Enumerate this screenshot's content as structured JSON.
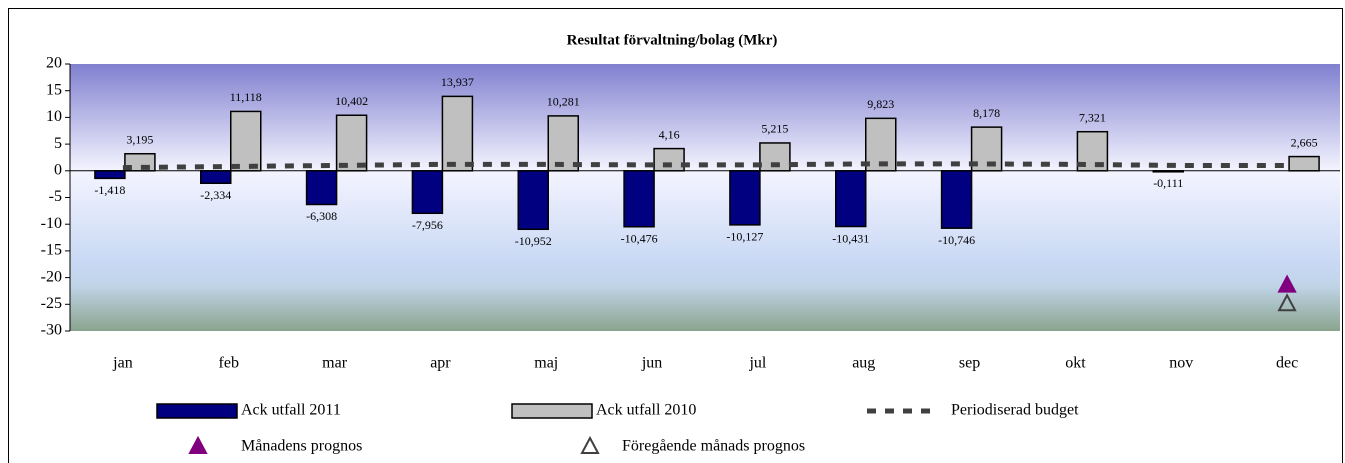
{
  "chart_data": {
    "type": "bar",
    "title": "Resultat förvaltning/bolag (Mkr)",
    "categories": [
      "jan",
      "feb",
      "mar",
      "apr",
      "maj",
      "jun",
      "jul",
      "aug",
      "sep",
      "okt",
      "nov",
      "dec"
    ],
    "series": [
      {
        "name": "Ack utfall 2011",
        "color": "#000080",
        "style": "bar",
        "values": [
          -1.418,
          -2.334,
          -6.308,
          -7.956,
          -10.952,
          -10.476,
          -10.127,
          -10.431,
          -10.746,
          null,
          -0.111,
          null
        ],
        "value_labels": [
          "-1,418",
          "-2,334",
          "-6,308",
          "-7,956",
          "-10,952",
          "-10,476",
          "-10,127",
          "-10,431",
          "-10,746",
          null,
          "-0,111",
          null
        ]
      },
      {
        "name": "Ack utfall 2010",
        "color": "#c0c0c0",
        "style": "bar",
        "values": [
          3.195,
          11.118,
          10.402,
          13.937,
          10.281,
          4.16,
          5.215,
          9.823,
          8.178,
          7.321,
          null,
          2.665
        ],
        "value_labels": [
          "3,195",
          "11,118",
          "10,402",
          "13,937",
          "10,281",
          "4,16",
          "5,215",
          "9,823",
          "8,178",
          "7,321",
          null,
          "2,665"
        ]
      },
      {
        "name": "Periodiserad budget",
        "color": "#404040",
        "style": "dashed-line",
        "values": [
          0.6,
          0.8,
          1.0,
          1.2,
          1.2,
          1.1,
          1.1,
          1.3,
          1.3,
          1.2,
          1.0,
          1.0
        ]
      },
      {
        "name": "Månadens prognos",
        "color": "#800080",
        "style": "marker",
        "values": [
          null,
          null,
          null,
          null,
          null,
          null,
          null,
          null,
          null,
          null,
          null,
          -21.5
        ]
      },
      {
        "name": "Föregående månads prognos",
        "color": "#404040",
        "style": "open-marker",
        "values": [
          null,
          null,
          null,
          null,
          null,
          null,
          null,
          null,
          null,
          null,
          null,
          -25
        ]
      }
    ],
    "ylim": [
      -30,
      20
    ],
    "yticks": [
      20,
      15,
      10,
      5,
      0,
      -5,
      -10,
      -15,
      -20,
      -25,
      -30
    ]
  }
}
